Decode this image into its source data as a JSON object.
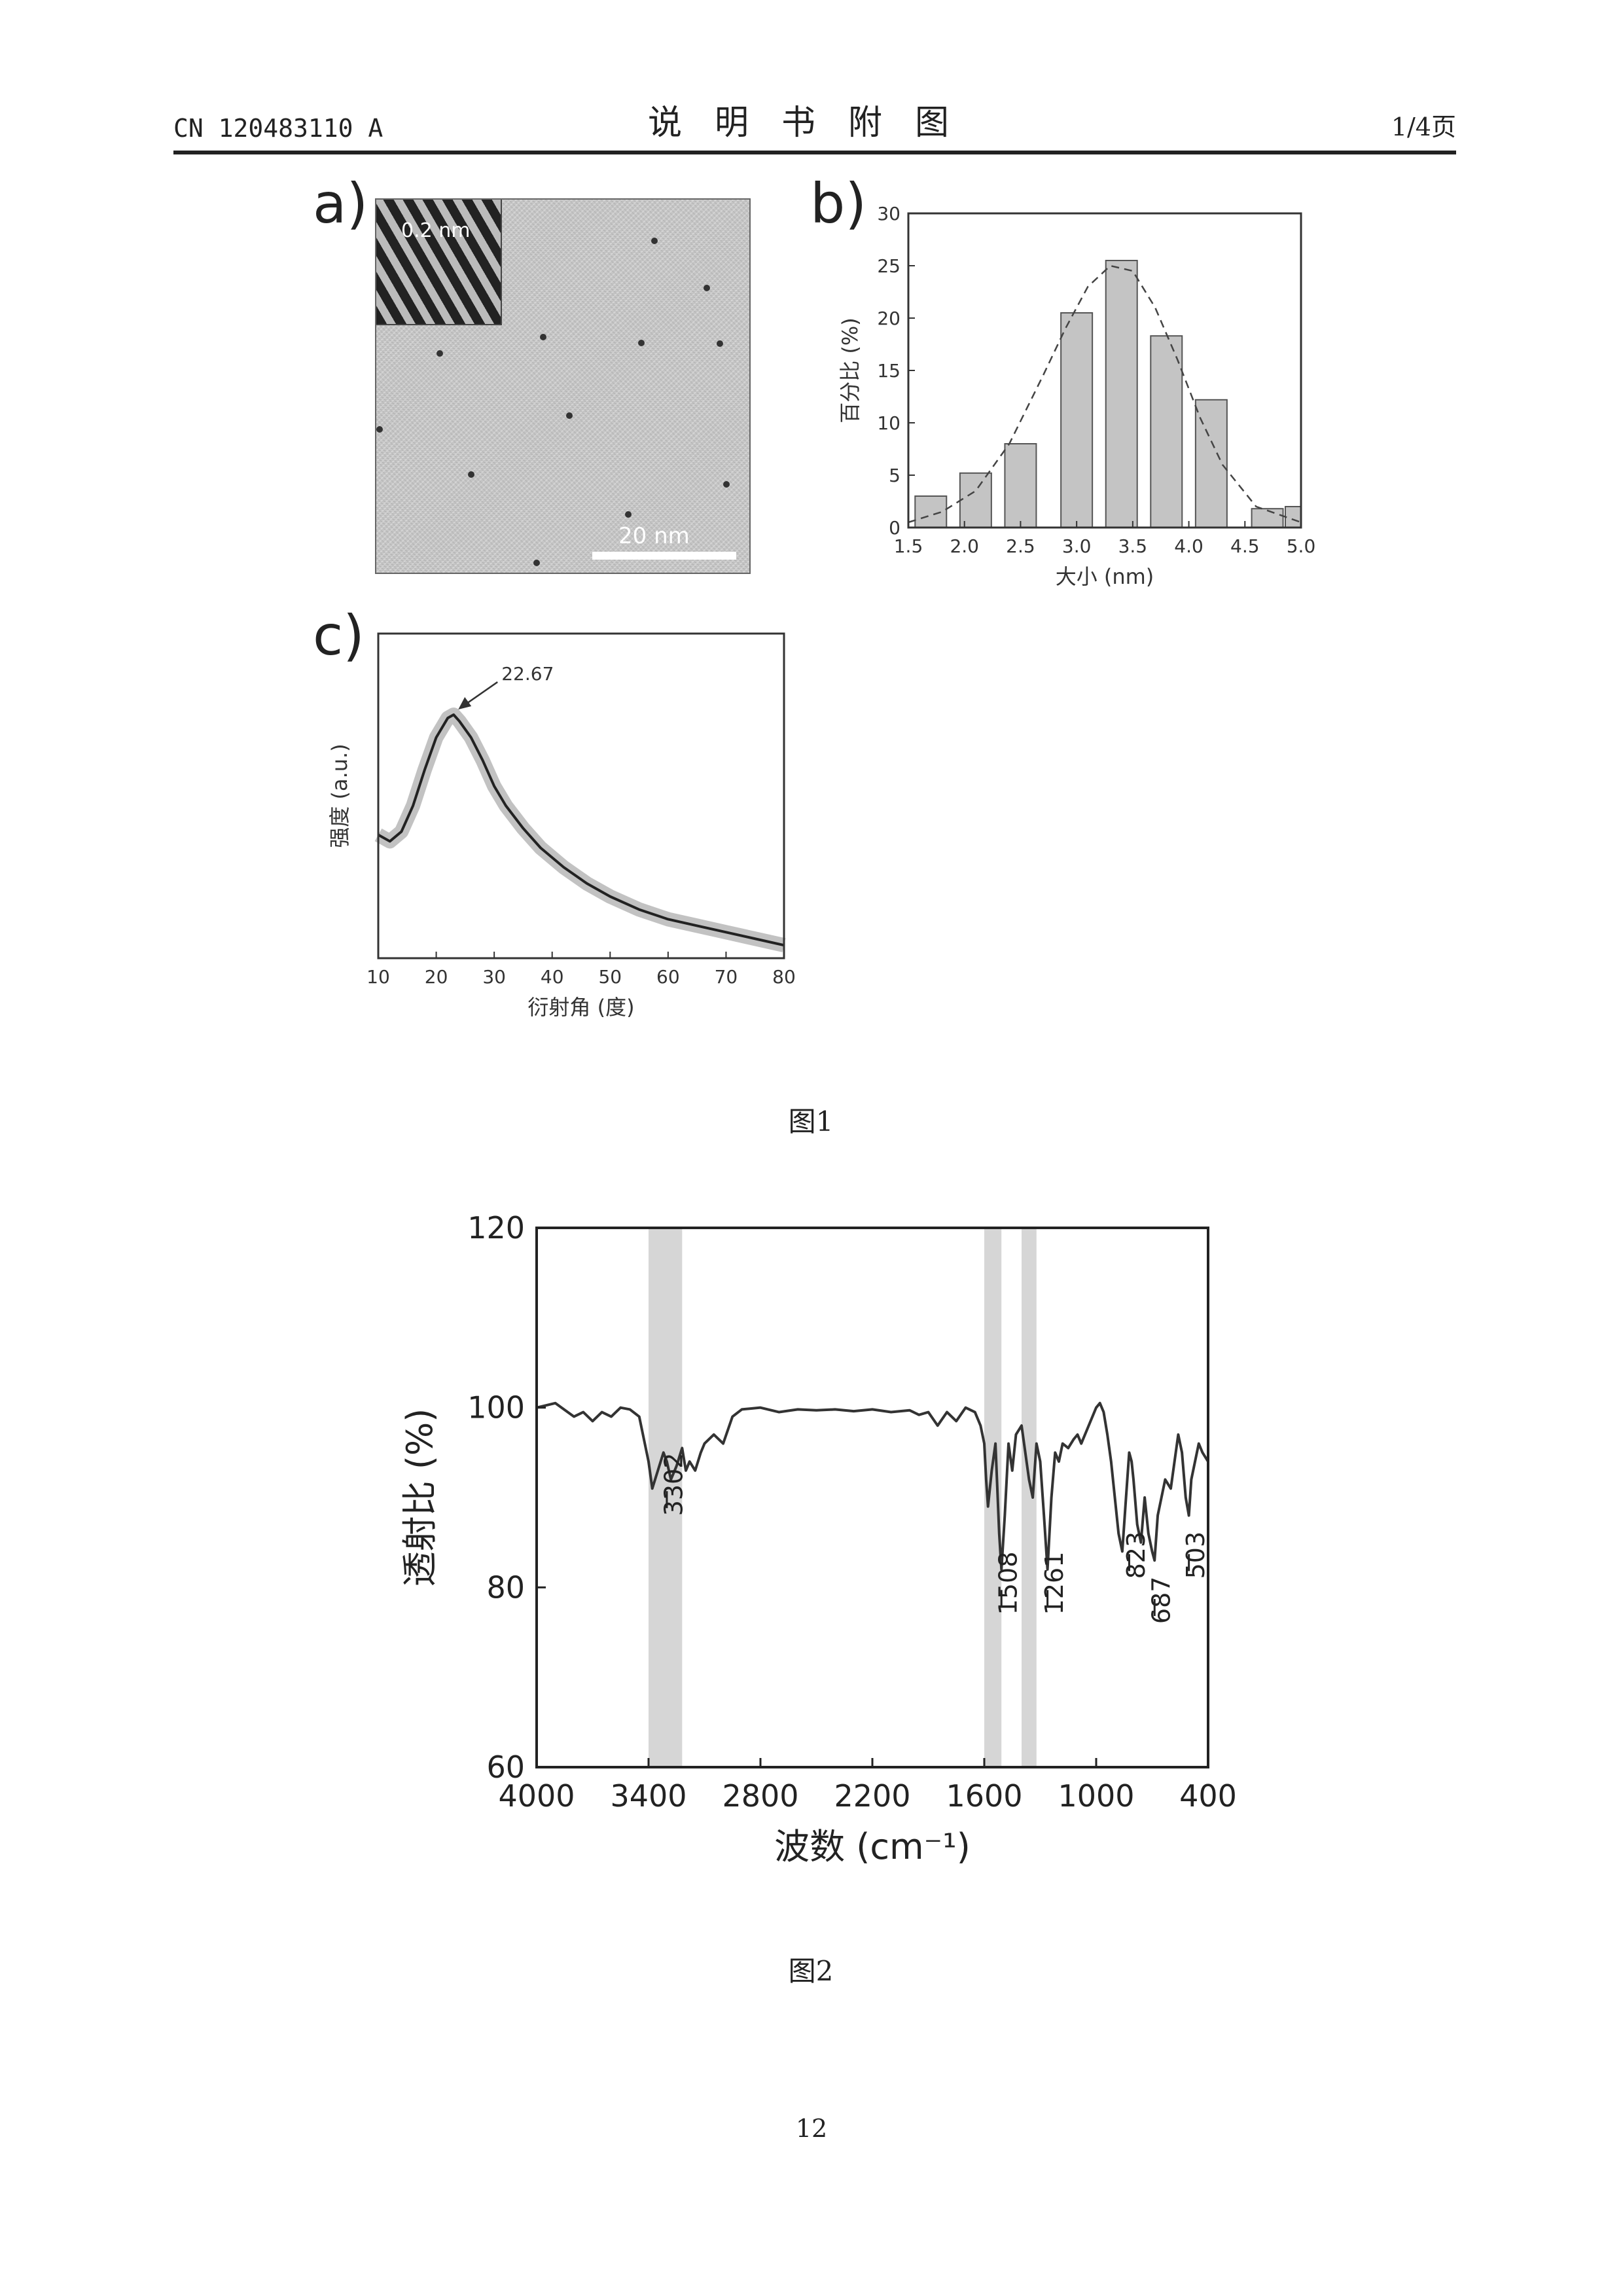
{
  "header": {
    "doc_number": "CN 120483110 A",
    "title": "说明书附图",
    "page_indicator": "1/4页"
  },
  "figure1": {
    "caption": "图1",
    "panel_a": {
      "label": "a)",
      "inset_label": "0.2 nm",
      "scale_label": "20 nm"
    },
    "panel_b": {
      "label": "b)"
    },
    "panel_c": {
      "label": "c)"
    }
  },
  "figure2": {
    "caption": "图2"
  },
  "page_number": "12",
  "chart_data": [
    {
      "id": "fig1b",
      "type": "bar",
      "xlabel": "大小 (nm)",
      "ylabel": "百分比 (%)",
      "xlim": [
        1.5,
        5.0
      ],
      "ylim": [
        0,
        30
      ],
      "xticks": [
        "1.5",
        "2.0",
        "2.5",
        "3.0",
        "3.5",
        "4.0",
        "4.5",
        "5.0"
      ],
      "yticks": [
        "0",
        "5",
        "10",
        "15",
        "20",
        "25",
        "30"
      ],
      "bar_width": 0.28,
      "x": [
        1.7,
        2.1,
        2.5,
        3.0,
        3.4,
        3.8,
        4.2,
        4.7,
        5.0
      ],
      "values": [
        3,
        5.2,
        8,
        20.5,
        25.5,
        18.3,
        12.2,
        1.8,
        2
      ],
      "fit_curve": {
        "x": [
          1.5,
          1.8,
          2.1,
          2.4,
          2.7,
          2.9,
          3.1,
          3.3,
          3.5,
          3.7,
          3.9,
          4.1,
          4.3,
          4.6,
          5.0
        ],
        "y": [
          0.5,
          1.5,
          3.5,
          8,
          14.5,
          19,
          23,
          25,
          24.5,
          21,
          16,
          10.5,
          6,
          2,
          0.5
        ]
      },
      "grid": false
    },
    {
      "id": "fig1c",
      "type": "line",
      "xlabel": "衍射角 (度)",
      "ylabel": "强度 (a.u.)",
      "xlim": [
        10,
        80
      ],
      "ylim": [
        0,
        1
      ],
      "xticks": [
        "10",
        "20",
        "30",
        "40",
        "50",
        "60",
        "70",
        "80"
      ],
      "yticks": [],
      "series": [
        {
          "x": [
            10,
            12,
            14,
            16,
            18,
            20,
            22,
            23,
            24,
            26,
            28,
            30,
            32,
            35,
            38,
            42,
            46,
            50,
            55,
            60,
            65,
            70,
            75,
            80
          ],
          "y": [
            0.38,
            0.36,
            0.39,
            0.47,
            0.58,
            0.68,
            0.74,
            0.75,
            0.73,
            0.68,
            0.61,
            0.53,
            0.47,
            0.4,
            0.34,
            0.28,
            0.23,
            0.19,
            0.15,
            0.12,
            0.1,
            0.08,
            0.06,
            0.04
          ]
        }
      ],
      "annotations": [
        {
          "text": "22.67",
          "x": 22.67
        }
      ],
      "grid": false
    },
    {
      "id": "fig2",
      "type": "line",
      "xlabel": "波数 (cm⁻¹)",
      "ylabel": "透射比 (%)",
      "xlim": [
        4000,
        400
      ],
      "ylim": [
        60,
        120
      ],
      "xticks": [
        "4000",
        "3400",
        "2800",
        "2200",
        "1600",
        "1000",
        "400"
      ],
      "yticks": [
        "60",
        "80",
        "100",
        "120"
      ],
      "highlight_bands": [
        [
          3400,
          3220
        ],
        [
          1600,
          1508
        ],
        [
          1400,
          1320
        ]
      ],
      "series": [
        {
          "x": [
            4000,
            3900,
            3800,
            3750,
            3700,
            3650,
            3600,
            3550,
            3500,
            3450,
            3420,
            3400,
            3380,
            3350,
            3320,
            3302,
            3280,
            3250,
            3220,
            3200,
            3180,
            3150,
            3120,
            3100,
            3050,
            3000,
            2950,
            2900,
            2800,
            2700,
            2600,
            2500,
            2400,
            2300,
            2200,
            2100,
            2000,
            1950,
            1900,
            1850,
            1800,
            1750,
            1700,
            1650,
            1620,
            1600,
            1590,
            1580,
            1560,
            1540,
            1520,
            1508,
            1490,
            1470,
            1450,
            1430,
            1400,
            1380,
            1360,
            1340,
            1320,
            1300,
            1280,
            1261,
            1240,
            1220,
            1200,
            1180,
            1150,
            1120,
            1100,
            1080,
            1050,
            1030,
            1000,
            980,
            960,
            940,
            920,
            900,
            880,
            860,
            840,
            823,
            810,
            800,
            780,
            760,
            740,
            720,
            700,
            687,
            670,
            650,
            630,
            600,
            580,
            560,
            540,
            520,
            503,
            490,
            470,
            450,
            430,
            400
          ],
          "y": [
            100,
            100.5,
            99,
            99.5,
            98.5,
            99.5,
            99,
            100,
            99.8,
            99,
            96,
            94,
            91,
            93,
            95,
            94,
            92,
            93.5,
            95.5,
            93,
            94,
            93,
            95,
            96,
            97,
            96,
            99,
            99.8,
            100,
            99.5,
            99.8,
            99.7,
            99.8,
            99.6,
            99.8,
            99.5,
            99.7,
            99.2,
            99.5,
            98,
            99.5,
            98.5,
            100,
            99.5,
            98,
            96,
            92,
            89,
            93,
            96,
            86,
            82,
            88,
            96,
            93,
            97,
            98,
            95,
            92,
            90,
            96,
            94,
            88,
            82,
            90,
            95,
            94,
            96,
            95.5,
            96.5,
            97,
            96,
            97.5,
            98.5,
            100,
            100.5,
            99.5,
            97,
            94,
            90,
            86,
            84,
            90,
            95,
            94,
            92,
            87,
            85,
            90,
            86,
            84,
            83,
            88,
            90,
            92,
            91,
            94,
            97,
            95,
            90,
            88,
            92,
            94,
            96,
            95,
            94
          ]
        }
      ],
      "peak_labels": [
        "3302",
        "1508",
        "1261",
        "823",
        "687",
        "503"
      ],
      "grid": false
    }
  ]
}
